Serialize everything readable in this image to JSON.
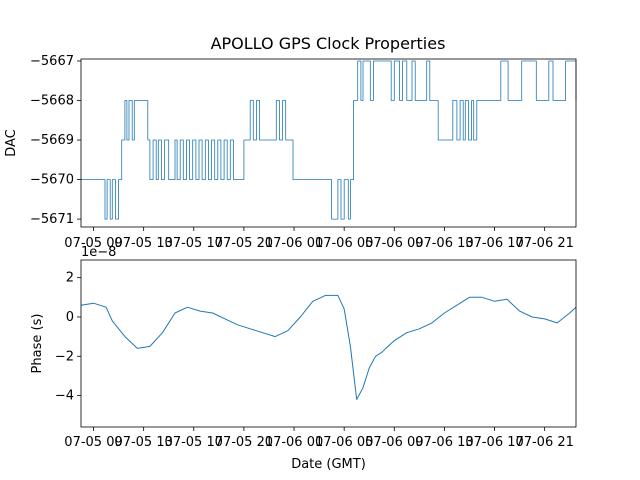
{
  "chart_data": [
    {
      "type": "line",
      "title": "APOLLO GPS Clock Properties",
      "xlabel": "",
      "ylabel": "DAC",
      "xlim": [
        "07-05 08:00",
        "07-06 23:30"
      ],
      "ylim": [
        -5671.2,
        -5666.95
      ],
      "y_ticks": [
        -5671,
        -5670,
        -5669,
        -5668,
        -5667
      ],
      "y_tick_labels": [
        "−5671",
        "−5670",
        "−5669",
        "−5668",
        "−5667"
      ],
      "x_tick_labels": [
        "07-05 09",
        "07-05 13",
        "07-05 17",
        "07-05 21",
        "07-06 01",
        "07-06 05",
        "07-06 09",
        "07-06 13",
        "07-06 17",
        "07-06 21"
      ],
      "color": "#1f77b4",
      "series": [
        {
          "x": [
            "07-05 08:00",
            "07-05 09:55",
            "07-05 10:05",
            "07-05 10:20",
            "07-05 10:30",
            "07-05 10:45",
            "07-05 11:00",
            "07-05 11:15",
            "07-05 11:30",
            "07-05 11:40",
            "07-05 11:50",
            "07-05 12:05",
            "07-05 12:15",
            "07-05 13:20",
            "07-05 13:30",
            "07-05 13:45",
            "07-05 14:00",
            "07-05 14:10",
            "07-05 14:25",
            "07-05 14:40",
            "07-05 15:00",
            "07-05 15:30",
            "07-05 15:40",
            "07-05 15:55",
            "07-05 16:10",
            "07-05 16:25",
            "07-05 16:40",
            "07-05 16:55",
            "07-05 17:10",
            "07-05 17:25",
            "07-05 17:40",
            "07-05 17:55",
            "07-05 18:10",
            "07-05 18:25",
            "07-05 18:40",
            "07-05 18:55",
            "07-05 19:10",
            "07-05 19:25",
            "07-05 19:40",
            "07-05 19:55",
            "07-05 20:10",
            "07-05 21:00",
            "07-05 21:30",
            "07-05 21:45",
            "07-05 22:00",
            "07-05 22:15",
            "07-05 23:35",
            "07-05 23:50",
            "07-06 00:05",
            "07-06 00:20",
            "07-06 00:40",
            "07-06 00:55",
            "07-06 01:20",
            "07-06 03:10",
            "07-06 04:00",
            "07-06 04:30",
            "07-06 04:45",
            "07-06 05:00",
            "07-06 05:20",
            "07-06 05:30",
            "07-06 05:45",
            "07-06 06:05",
            "07-06 06:20",
            "07-06 06:30",
            "07-06 06:50",
            "07-06 07:05",
            "07-06 07:20",
            "07-06 08:45",
            "07-06 09:00",
            "07-06 09:25",
            "07-06 09:40",
            "07-06 10:00",
            "07-06 10:25",
            "07-06 10:40",
            "07-06 11:35",
            "07-06 11:50",
            "07-06 12:15",
            "07-06 12:30",
            "07-06 13:40",
            "07-06 14:00",
            "07-06 14:15",
            "07-06 14:30",
            "07-06 14:40",
            "07-06 14:55",
            "07-06 15:10",
            "07-06 15:20",
            "07-06 15:35",
            "07-06 16:00",
            "07-06 17:30",
            "07-06 18:05",
            "07-06 19:10",
            "07-06 20:20",
            "07-06 21:20",
            "07-06 21:40",
            "07-06 22:40",
            "07-06 23:30"
          ],
          "y": [
            -5670,
            -5671,
            -5670,
            -5671,
            -5670,
            -5671,
            -5670,
            -5669,
            -5668,
            -5669,
            -5668,
            -5669,
            -5668,
            -5669,
            -5670,
            -5669,
            -5670,
            -5669,
            -5670,
            -5669,
            -5670,
            -5669,
            -5670,
            -5669,
            -5670,
            -5669,
            -5670,
            -5669,
            -5670,
            -5669,
            -5670,
            -5669,
            -5670,
            -5669,
            -5670,
            -5669,
            -5670,
            -5669,
            -5670,
            -5669,
            -5670,
            -5669,
            -5668,
            -5669,
            -5668,
            -5669,
            -5668,
            -5669,
            -5668,
            -5669,
            -5669,
            -5670,
            -5670,
            -5670,
            -5671,
            -5670,
            -5671,
            -5670,
            -5671,
            -5670,
            -5668,
            -5667,
            -5668,
            -5667,
            -5667,
            -5668,
            -5667,
            -5668,
            -5667,
            -5668,
            -5667,
            -5668,
            -5667,
            -5668,
            -5667,
            -5668,
            -5668,
            -5669,
            -5668,
            -5669,
            -5668,
            -5669,
            -5668,
            -5669,
            -5668,
            -5669,
            -5668,
            -5668,
            -5667,
            -5668,
            -5667,
            -5668,
            -5667,
            -5668,
            -5667,
            -5668
          ]
        }
      ]
    },
    {
      "type": "line",
      "title": "",
      "xlabel": "Date (GMT)",
      "ylabel": "Phase (s)",
      "offset_label": "1e−8",
      "ylim": [
        -5.6e-08,
        2.9e-08
      ],
      "y_ticks": [
        -4e-08,
        -2e-08,
        0,
        2e-08
      ],
      "y_tick_labels": [
        "−4",
        "−2",
        "0",
        "2"
      ],
      "x_tick_labels": [
        "07-05 09",
        "07-05 13",
        "07-05 17",
        "07-05 21",
        "07-06 01",
        "07-06 05",
        "07-06 09",
        "07-06 13",
        "07-06 17",
        "07-06 21"
      ],
      "color": "#1f77b4",
      "series": [
        {
          "x": [
            "07-05 08:00",
            "07-05 09:00",
            "07-05 10:00",
            "07-05 10:30",
            "07-05 11:30",
            "07-05 12:30",
            "07-05 13:30",
            "07-05 14:30",
            "07-05 15:30",
            "07-05 16:30",
            "07-05 17:30",
            "07-05 18:30",
            "07-05 19:30",
            "07-05 20:30",
            "07-05 21:30",
            "07-05 22:30",
            "07-05 23:30",
            "07-06 00:30",
            "07-06 01:30",
            "07-06 02:00",
            "07-06 02:30",
            "07-06 03:30",
            "07-06 04:30",
            "07-06 05:00",
            "07-06 05:30",
            "07-06 06:00",
            "07-06 06:30",
            "07-06 07:00",
            "07-06 07:30",
            "07-06 08:00",
            "07-06 08:30",
            "07-06 09:00",
            "07-06 10:00",
            "07-06 11:00",
            "07-06 12:00",
            "07-06 13:00",
            "07-06 14:00",
            "07-06 15:00",
            "07-06 16:00",
            "07-06 17:00",
            "07-06 18:00",
            "07-06 19:00",
            "07-06 20:00",
            "07-06 21:00",
            "07-06 22:00",
            "07-06 23:00",
            "07-06 23:30"
          ],
          "y": [
            6e-09,
            7e-09,
            5e-09,
            -2e-09,
            -1e-08,
            -1.6e-08,
            -1.5e-08,
            -8e-09,
            2e-09,
            5e-09,
            3e-09,
            2e-09,
            -1e-09,
            -4e-09,
            -6e-09,
            -8e-09,
            -1e-08,
            -7e-09,
            0.0,
            4e-09,
            8e-09,
            1.1e-08,
            1.1e-08,
            4e-09,
            -1.5e-08,
            -4.2e-08,
            -3.6e-08,
            -2.6e-08,
            -2e-08,
            -1.8e-08,
            -1.5e-08,
            -1.2e-08,
            -8e-09,
            -6e-09,
            -3e-09,
            2e-09,
            6e-09,
            1e-08,
            1e-08,
            8e-09,
            9e-09,
            3e-09,
            0.0,
            -1e-09,
            -3e-09,
            2e-09,
            5e-09
          ]
        }
      ]
    }
  ]
}
